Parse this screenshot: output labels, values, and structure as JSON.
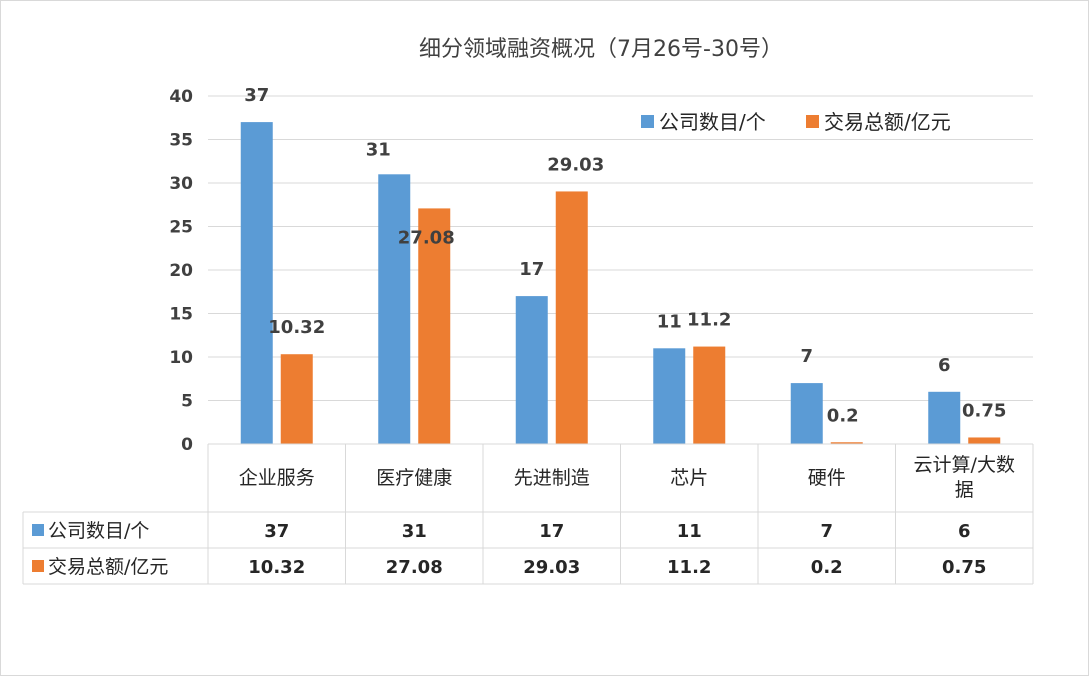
{
  "chart_data": {
    "type": "bar",
    "title": "细分领域融资概况（7月26号-30号）",
    "categories": [
      "企业服务",
      "医疗健康",
      "先进制造",
      "芯片",
      "硬件",
      "云计算/大数据"
    ],
    "series": [
      {
        "name": "公司数目/个",
        "values": [
          37,
          31,
          17,
          11,
          7,
          6
        ],
        "labels": [
          "37",
          "31",
          "17",
          "11",
          "7",
          "6"
        ],
        "color": "#5b9bd5"
      },
      {
        "name": "交易总额/亿元",
        "values": [
          10.32,
          27.08,
          29.03,
          11.2,
          0.2,
          0.75
        ],
        "labels": [
          "10.32",
          "27.08",
          "29.03",
          "11.2",
          "0.2",
          "0.75"
        ],
        "color": "#ed7d31"
      }
    ],
    "ylim": [
      0,
      40
    ],
    "yticks": [
      0,
      5,
      10,
      15,
      20,
      25,
      30,
      35,
      40
    ],
    "grid": true,
    "legend": "top-right",
    "data_table": true
  },
  "colors": {
    "grid": "#d9d9d9",
    "axis_text": "#404040"
  }
}
